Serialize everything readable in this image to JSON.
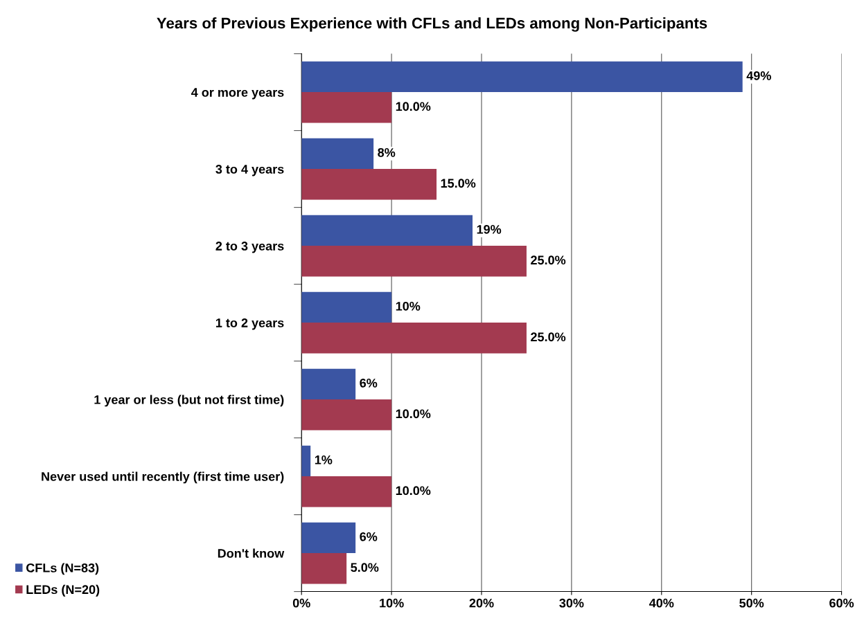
{
  "chart_data": {
    "type": "bar",
    "orientation": "horizontal",
    "title": "Years of Previous Experience with CFLs and LEDs among Non-Participants",
    "categories": [
      "4 or more years",
      "3 to 4 years",
      "2 to 3 years",
      "1 to 2 years",
      "1 year or less (but not first time)",
      "Never used until recently (first time user)",
      "Don't know"
    ],
    "series": [
      {
        "name": "CFLs (N=83)",
        "color": "#3b55a3",
        "values": [
          49,
          8,
          19,
          10,
          6,
          1,
          6
        ],
        "value_labels": [
          "49%",
          "8%",
          "19%",
          "10%",
          "6%",
          "1%",
          "6%"
        ]
      },
      {
        "name": "LEDs (N=20)",
        "color": "#a33a50",
        "values": [
          10,
          15,
          25,
          25,
          10,
          10,
          5
        ],
        "value_labels": [
          "10.0%",
          "15.0%",
          "25.0%",
          "25.0%",
          "10.0%",
          "10.0%",
          "5.0%"
        ]
      }
    ],
    "xlim": [
      0,
      60
    ],
    "xticks": [
      {
        "value": 0,
        "label": "0%"
      },
      {
        "value": 10,
        "label": "10%"
      },
      {
        "value": 20,
        "label": "20%"
      },
      {
        "value": 30,
        "label": "30%"
      },
      {
        "value": 40,
        "label": "40%"
      },
      {
        "value": 50,
        "label": "50%"
      },
      {
        "value": 60,
        "label": "60%"
      }
    ],
    "grid": "x",
    "legend": "bottom left"
  }
}
